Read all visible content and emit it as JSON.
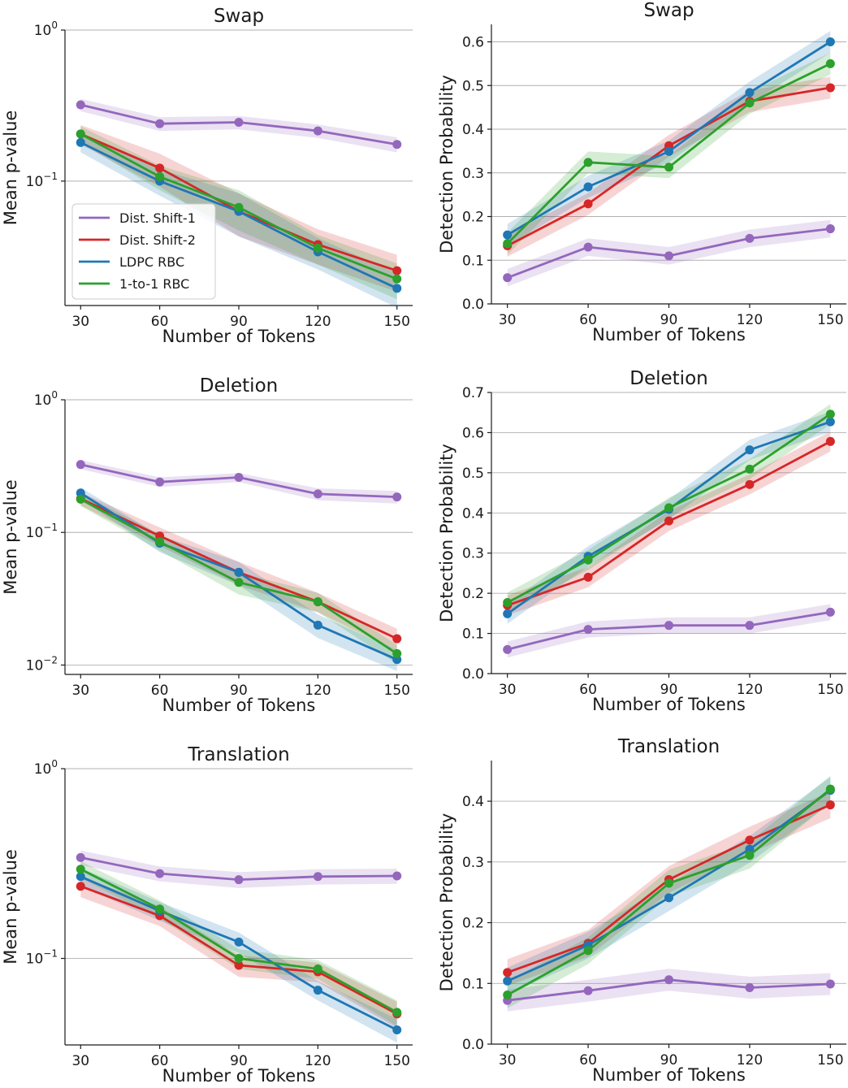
{
  "chart_data": [
    {
      "type": "line",
      "title": "Swap",
      "xlabel": "Number of Tokens",
      "ylabel": "Mean p-value",
      "x": [
        30,
        60,
        90,
        120,
        150
      ],
      "yscale": "log",
      "ylim": [
        0.015,
        1
      ],
      "yticks": [
        {
          "base": "10",
          "exp": "0",
          "value": 1
        },
        {
          "base": "10",
          "exp": "−1",
          "value": 0.1
        }
      ],
      "legend": true,
      "legend_position": "lower-left",
      "series": [
        {
          "name": "Dist. Shift-1",
          "color": "#9467bd",
          "values": [
            0.32,
            0.24,
            0.245,
            0.215,
            0.175
          ],
          "band": [
            0.03,
            0.025,
            0.025,
            0.022,
            0.02
          ]
        },
        {
          "name": "Dist. Shift-2",
          "color": "#d62728",
          "values": [
            0.205,
            0.122,
            0.063,
            0.038,
            0.0255
          ],
          "band": [
            0.03,
            0.03,
            0.02,
            0.01,
            0.007
          ]
        },
        {
          "name": "LDPC RBC",
          "color": "#1f77b4",
          "values": [
            0.18,
            0.1,
            0.063,
            0.034,
            0.0195
          ],
          "band": [
            0.025,
            0.02,
            0.02,
            0.008,
            0.005
          ]
        },
        {
          "name": "1-to-1 RBC",
          "color": "#2ca02c",
          "values": [
            0.205,
            0.107,
            0.067,
            0.036,
            0.0225
          ],
          "band": [
            0.025,
            0.02,
            0.02,
            0.008,
            0.006
          ]
        }
      ]
    },
    {
      "type": "line",
      "title": "Swap",
      "xlabel": "Number of Tokens",
      "ylabel": "Detection Probability",
      "x": [
        30,
        60,
        90,
        120,
        150
      ],
      "yscale": "linear",
      "ylim": [
        0,
        0.64
      ],
      "yticks": [
        "0.0",
        "0.1",
        "0.2",
        "0.3",
        "0.4",
        "0.5",
        "0.6"
      ],
      "series": [
        {
          "name": "Dist. Shift-1",
          "color": "#9467bd",
          "values": [
            0.06,
            0.13,
            0.11,
            0.15,
            0.172
          ],
          "band": [
            0.02,
            0.02,
            0.02,
            0.02,
            0.02
          ]
        },
        {
          "name": "Dist. Shift-2",
          "color": "#d62728",
          "values": [
            0.133,
            0.229,
            0.362,
            0.464,
            0.495
          ],
          "band": [
            0.025,
            0.025,
            0.025,
            0.025,
            0.025
          ]
        },
        {
          "name": "LDPC RBC",
          "color": "#1f77b4",
          "values": [
            0.158,
            0.268,
            0.349,
            0.484,
            0.6
          ],
          "band": [
            0.025,
            0.025,
            0.025,
            0.025,
            0.025
          ]
        },
        {
          "name": "1-to-1 RBC",
          "color": "#2ca02c",
          "values": [
            0.138,
            0.324,
            0.313,
            0.46,
            0.55
          ],
          "band": [
            0.025,
            0.025,
            0.025,
            0.025,
            0.025
          ]
        }
      ]
    },
    {
      "type": "line",
      "title": "Deletion",
      "xlabel": "Number of Tokens",
      "ylabel": "Mean p-value",
      "x": [
        30,
        60,
        90,
        120,
        150
      ],
      "yscale": "log",
      "ylim": [
        0.0085,
        1
      ],
      "yticks": [
        {
          "base": "10",
          "exp": "0",
          "value": 1
        },
        {
          "base": "10",
          "exp": "−1",
          "value": 0.1
        },
        {
          "base": "10",
          "exp": "−2",
          "value": 0.01
        }
      ],
      "series": [
        {
          "name": "Dist. Shift-1",
          "color": "#9467bd",
          "values": [
            0.325,
            0.24,
            0.26,
            0.195,
            0.185
          ],
          "band": [
            0.025,
            0.02,
            0.02,
            0.02,
            0.02
          ]
        },
        {
          "name": "Dist. Shift-2",
          "color": "#d62728",
          "values": [
            0.18,
            0.094,
            0.05,
            0.03,
            0.0158
          ],
          "band": [
            0.02,
            0.015,
            0.01,
            0.005,
            0.003
          ]
        },
        {
          "name": "LDPC RBC",
          "color": "#1f77b4",
          "values": [
            0.198,
            0.083,
            0.05,
            0.02,
            0.011
          ],
          "band": [
            0.02,
            0.012,
            0.01,
            0.004,
            0.002
          ]
        },
        {
          "name": "1-to-1 RBC",
          "color": "#2ca02c",
          "values": [
            0.178,
            0.085,
            0.042,
            0.03,
            0.0122
          ],
          "band": [
            0.02,
            0.012,
            0.008,
            0.005,
            0.002
          ]
        }
      ]
    },
    {
      "type": "line",
      "title": "Deletion",
      "xlabel": "Number of Tokens",
      "ylabel": "Detection Probability",
      "x": [
        30,
        60,
        90,
        120,
        150
      ],
      "yscale": "linear",
      "ylim": [
        0,
        0.7
      ],
      "yticks": [
        "0.0",
        "0.1",
        "0.2",
        "0.3",
        "0.4",
        "0.5",
        "0.6",
        "0.7"
      ],
      "series": [
        {
          "name": "Dist. Shift-1",
          "color": "#9467bd",
          "values": [
            0.06,
            0.11,
            0.12,
            0.12,
            0.153
          ],
          "band": [
            0.02,
            0.02,
            0.02,
            0.02,
            0.02
          ]
        },
        {
          "name": "Dist. Shift-2",
          "color": "#d62728",
          "values": [
            0.17,
            0.24,
            0.38,
            0.471,
            0.578
          ],
          "band": [
            0.025,
            0.025,
            0.025,
            0.025,
            0.025
          ]
        },
        {
          "name": "LDPC RBC",
          "color": "#1f77b4",
          "values": [
            0.149,
            0.292,
            0.409,
            0.557,
            0.627
          ],
          "band": [
            0.025,
            0.025,
            0.025,
            0.025,
            0.025
          ]
        },
        {
          "name": "1-to-1 RBC",
          "color": "#2ca02c",
          "values": [
            0.177,
            0.283,
            0.413,
            0.509,
            0.646
          ],
          "band": [
            0.025,
            0.025,
            0.025,
            0.025,
            0.025
          ]
        }
      ]
    },
    {
      "type": "line",
      "title": "Translation",
      "xlabel": "Number of Tokens",
      "ylabel": "Mean p-value",
      "x": [
        30,
        60,
        90,
        120,
        150
      ],
      "yscale": "log",
      "ylim": [
        0.035,
        1
      ],
      "yticks": [
        {
          "base": "10",
          "exp": "0",
          "value": 1
        },
        {
          "base": "10",
          "exp": "−1",
          "value": 0.1
        }
      ],
      "series": [
        {
          "name": "Dist. Shift-1",
          "color": "#9467bd",
          "values": [
            0.34,
            0.28,
            0.26,
            0.27,
            0.272
          ],
          "band": [
            0.03,
            0.025,
            0.025,
            0.025,
            0.025
          ]
        },
        {
          "name": "Dist. Shift-2",
          "color": "#d62728",
          "values": [
            0.24,
            0.168,
            0.092,
            0.085,
            0.051
          ],
          "band": [
            0.03,
            0.02,
            0.012,
            0.01,
            0.008
          ]
        },
        {
          "name": "LDPC RBC",
          "color": "#1f77b4",
          "values": [
            0.27,
            0.178,
            0.122,
            0.068,
            0.042
          ],
          "band": [
            0.03,
            0.02,
            0.015,
            0.008,
            0.006
          ]
        },
        {
          "name": "1-to-1 RBC",
          "color": "#2ca02c",
          "values": [
            0.295,
            0.182,
            0.1,
            0.088,
            0.052
          ],
          "band": [
            0.03,
            0.02,
            0.012,
            0.01,
            0.008
          ]
        }
      ]
    },
    {
      "type": "line",
      "title": "Translation",
      "xlabel": "Number of Tokens",
      "ylabel": "Detection Probability",
      "x": [
        30,
        60,
        90,
        120,
        150
      ],
      "yscale": "linear",
      "ylim": [
        0,
        0.467
      ],
      "yticks": [
        "0.0",
        "0.1",
        "0.2",
        "0.3",
        "0.4"
      ],
      "series": [
        {
          "name": "Dist. Shift-1",
          "color": "#9467bd",
          "values": [
            0.072,
            0.088,
            0.106,
            0.093,
            0.099
          ],
          "band": [
            0.018,
            0.018,
            0.018,
            0.018,
            0.018
          ]
        },
        {
          "name": "Dist. Shift-2",
          "color": "#d62728",
          "values": [
            0.118,
            0.166,
            0.271,
            0.336,
            0.394
          ],
          "band": [
            0.022,
            0.022,
            0.022,
            0.022,
            0.022
          ]
        },
        {
          "name": "LDPC RBC",
          "color": "#1f77b4",
          "values": [
            0.104,
            0.163,
            0.241,
            0.321,
            0.418
          ],
          "band": [
            0.022,
            0.022,
            0.022,
            0.022,
            0.022
          ]
        },
        {
          "name": "1-to-1 RBC",
          "color": "#2ca02c",
          "values": [
            0.081,
            0.154,
            0.265,
            0.311,
            0.42
          ],
          "band": [
            0.022,
            0.022,
            0.022,
            0.022,
            0.022
          ]
        }
      ]
    }
  ]
}
